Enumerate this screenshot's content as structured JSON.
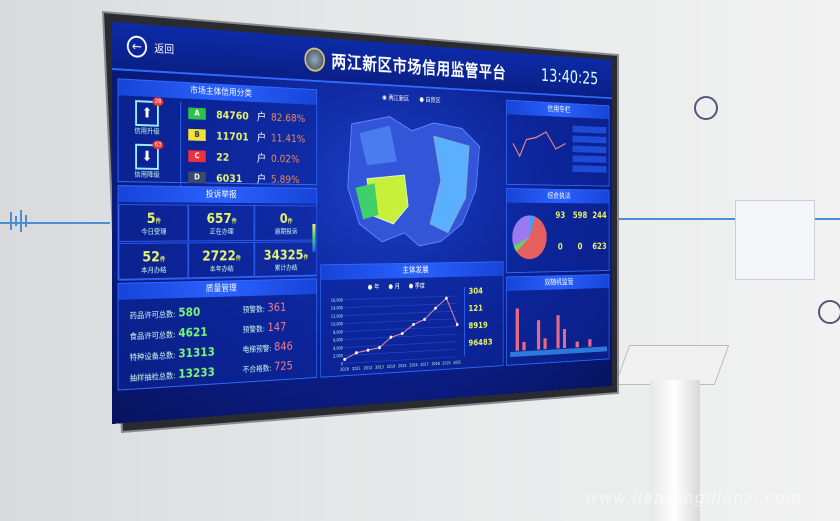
{
  "header": {
    "back_label": "返回",
    "title": "两江新区市场信用监管平台",
    "time": "13:40:25"
  },
  "credit_class": {
    "title": "市场主体信用分类",
    "upgrade_label": "信用升级",
    "upgrade_count": "28",
    "downgrade_label": "信用降级",
    "downgrade_count": "63",
    "rows": [
      {
        "grade": "A",
        "count": "84760",
        "unit": "户",
        "pct": "82.68%",
        "color": "#2fc24a"
      },
      {
        "grade": "B",
        "count": "11701",
        "unit": "户",
        "pct": "11.41%",
        "color": "#f2e23a"
      },
      {
        "grade": "C",
        "count": "22",
        "unit": "户",
        "pct": "0.02%",
        "color": "#f0303a"
      },
      {
        "grade": "D",
        "count": "6031",
        "unit": "户",
        "pct": "5.89%",
        "color": "#3a4a6a"
      }
    ]
  },
  "complaints": {
    "title": "投诉举报",
    "unit": "件",
    "cells": [
      {
        "value": "5",
        "label": "今日受理"
      },
      {
        "value": "657",
        "label": "正在办理"
      },
      {
        "value": "0",
        "label": "逾期投诉"
      },
      {
        "value": "52",
        "label": "本月办结"
      },
      {
        "value": "2722",
        "label": "本年办结"
      },
      {
        "value": "34325",
        "label": "累计办结"
      }
    ]
  },
  "quality": {
    "title": "质量管理",
    "left": [
      {
        "label": "药品许可总数:",
        "value": "580"
      },
      {
        "label": "食品许可总数:",
        "value": "4621"
      },
      {
        "label": "特种设备总数:",
        "value": "31313"
      },
      {
        "label": "抽样抽检总数:",
        "value": "13233"
      }
    ],
    "right": [
      {
        "label": "预警数:",
        "value": "361"
      },
      {
        "label": "预警数:",
        "value": "147"
      },
      {
        "label": "电梯预警:",
        "value": "846"
      },
      {
        "label": "不合格数:",
        "value": "725"
      }
    ]
  },
  "map": {
    "legend": [
      "两江新区",
      "自贸区"
    ]
  },
  "development": {
    "title": "主体发展",
    "legend": [
      "年",
      "月",
      "季度"
    ],
    "stats": [
      {
        "value": "304"
      },
      {
        "value": "121"
      },
      {
        "value": "8919"
      },
      {
        "value": "96483"
      }
    ]
  },
  "chart_data": {
    "type": "line",
    "x": [
      "2010",
      "2011",
      "2012",
      "2013",
      "2014",
      "2015",
      "2016",
      "2017",
      "2018",
      "2019",
      "2020"
    ],
    "values": [
      1000,
      2500,
      3000,
      3500,
      6000,
      6800,
      9000,
      10200,
      13000,
      15500,
      8500
    ],
    "ylim": [
      0,
      16000
    ],
    "yticks": [
      "0",
      "2,000",
      "4,000",
      "6,000",
      "8,000",
      "10,000",
      "12,000",
      "14,000",
      "16,000"
    ]
  },
  "right": {
    "credit_title": "信用专栏",
    "enforce_title": "综合执法",
    "enforce": [
      "93",
      "598",
      "244",
      "0",
      "0",
      "623"
    ],
    "random_title": "双随机监管"
  },
  "watermark": "www.lianrongdianzi.com"
}
